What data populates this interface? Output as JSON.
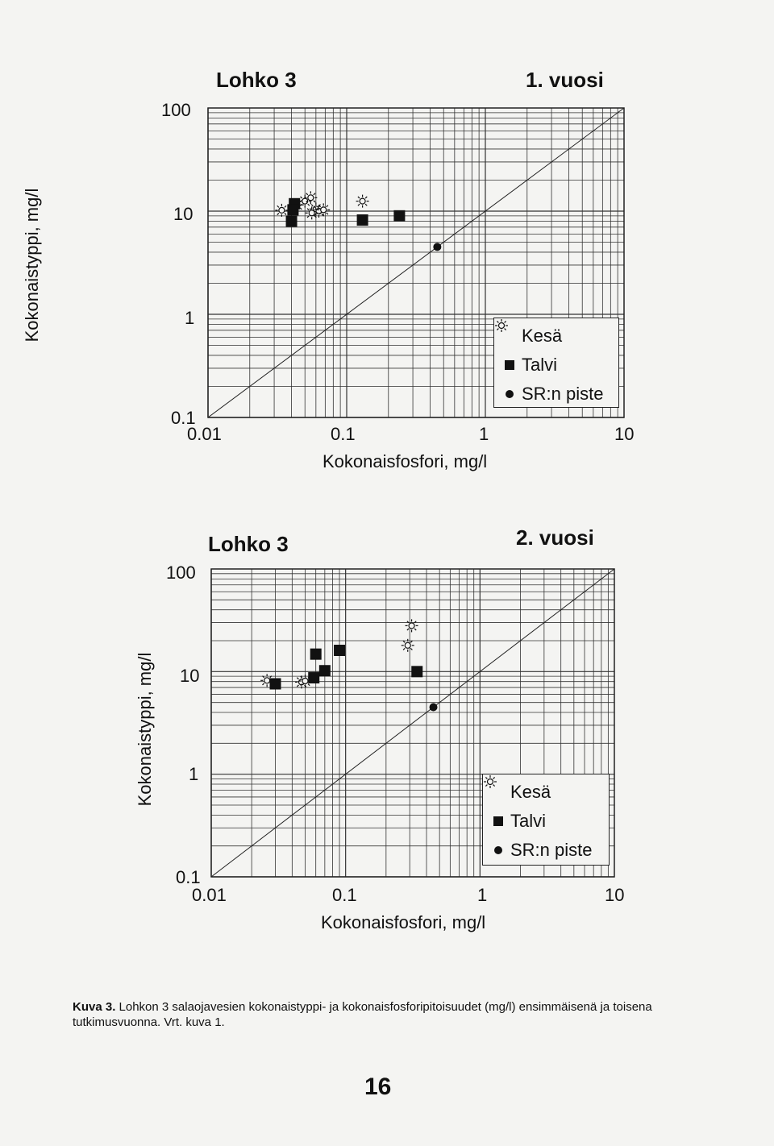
{
  "chart_data": [
    {
      "type": "scatter",
      "title": "Lohko 3",
      "subtitle": "1. vuosi",
      "xlabel": "Kokonaisfosfori, mg/l",
      "ylabel": "Kokonaistyppi, mg/l",
      "xscale": "log",
      "yscale": "log",
      "xlim": [
        0.01,
        10
      ],
      "ylim": [
        0.1,
        100
      ],
      "xticks": [
        "0.01",
        "0.1",
        "1",
        "10"
      ],
      "yticks": [
        "0.1",
        "1",
        "10",
        "100"
      ],
      "grid": true,
      "reference_line": {
        "from": [
          0.01,
          0.1
        ],
        "to": [
          10,
          100
        ]
      },
      "legend": {
        "position": "bottom-right"
      },
      "series": [
        {
          "name": "Kesä",
          "marker": "sun-icon",
          "points": [
            [
              0.034,
              10.2
            ],
            [
              0.044,
              11.5
            ],
            [
              0.05,
              12.5
            ],
            [
              0.055,
              13.5
            ],
            [
              0.06,
              10.5
            ],
            [
              0.063,
              10.0
            ],
            [
              0.056,
              9.6
            ],
            [
              0.068,
              10.3
            ],
            [
              0.13,
              12.5
            ]
          ]
        },
        {
          "name": "Talvi",
          "marker": "square",
          "points": [
            [
              0.042,
              11.8
            ],
            [
              0.041,
              10.3
            ],
            [
              0.04,
              8.0
            ],
            [
              0.13,
              8.2
            ],
            [
              0.24,
              9.0
            ]
          ]
        },
        {
          "name": "SR:n piste",
          "marker": "dot",
          "points": [
            [
              0.45,
              4.5
            ]
          ]
        }
      ]
    },
    {
      "type": "scatter",
      "title": "Lohko 3",
      "subtitle": "2. vuosi",
      "xlabel": "Kokonaisfosfori, mg/l",
      "ylabel": "Kokonaistyppi, mg/l",
      "xscale": "log",
      "yscale": "log",
      "xlim": [
        0.01,
        10
      ],
      "ylim": [
        0.1,
        100
      ],
      "xticks": [
        "0.01",
        "0.1",
        "1",
        "10"
      ],
      "yticks": [
        "0.1",
        "1",
        "10",
        "100"
      ],
      "grid": true,
      "reference_line": {
        "from": [
          0.01,
          0.1
        ],
        "to": [
          10,
          100
        ]
      },
      "legend": {
        "position": "bottom-right"
      },
      "series": [
        {
          "name": "Kesä",
          "marker": "sun-icon",
          "points": [
            [
              0.026,
              8.2
            ],
            [
              0.047,
              7.9
            ],
            [
              0.05,
              8.1
            ],
            [
              0.31,
              28.0
            ],
            [
              0.29,
              18.0
            ]
          ]
        },
        {
          "name": "Talvi",
          "marker": "square",
          "points": [
            [
              0.03,
              7.6
            ],
            [
              0.058,
              8.7
            ],
            [
              0.06,
              14.8
            ],
            [
              0.07,
              10.2
            ],
            [
              0.09,
              16.1
            ],
            [
              0.34,
              10.0
            ]
          ]
        },
        {
          "name": "SR:n piste",
          "marker": "dot",
          "points": [
            [
              0.45,
              4.5
            ]
          ]
        }
      ]
    }
  ],
  "caption": {
    "label": "Kuva 3.",
    "text": "Lohkon 3 salaojavesien kokonaistyppi- ja kokonaisfosforipitoisuudet (mg/l) ensimmäisenä ja toisena tutkimusvuonna. Vrt. kuva 1."
  },
  "page_number": "16"
}
